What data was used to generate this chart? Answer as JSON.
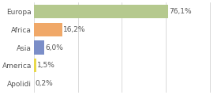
{
  "categories": [
    "Europa",
    "Africa",
    "Asia",
    "America",
    "Apolidi"
  ],
  "values": [
    76.1,
    16.2,
    6.0,
    1.5,
    0.2
  ],
  "labels": [
    "76,1%",
    "16,2%",
    "6,0%",
    "1,5%",
    "0,2%"
  ],
  "bar_colors": [
    "#b5c98e",
    "#f0a868",
    "#7b8ec8",
    "#e8d84a",
    "#d0d0d0"
  ],
  "background_color": "#ffffff",
  "label_fontsize": 6.5,
  "tick_fontsize": 6.5,
  "bar_height": 0.75,
  "xlim": [
    0,
    105
  ],
  "grid_ticks": [
    0,
    25,
    50,
    75,
    100
  ],
  "grid_color": "#cccccc",
  "text_color": "#555555"
}
